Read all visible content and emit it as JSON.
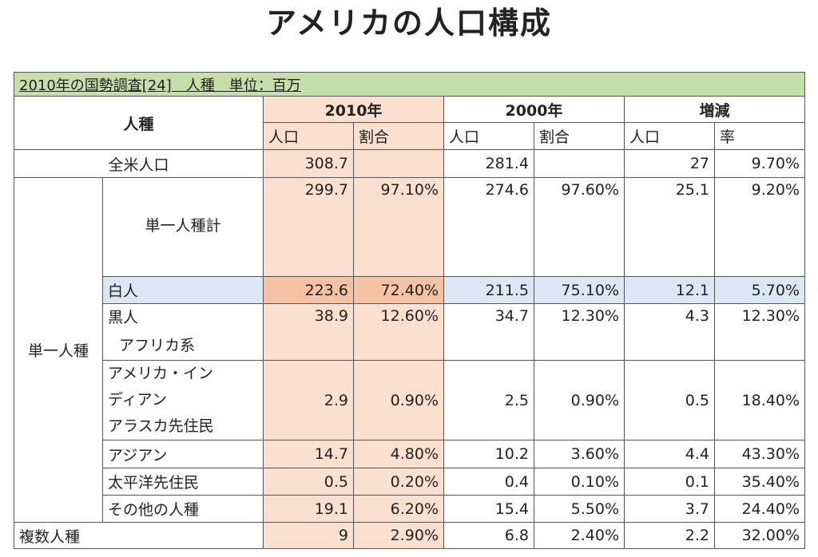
{
  "title": "アメリカの人口構成",
  "caption": "2010年の国勢調査[24]　人種　単位：百万",
  "headers": {
    "race": "人種",
    "y2010": "2010年",
    "y2000": "2000年",
    "change": "増減",
    "pop": "人口",
    "ratio": "割合",
    "rate": "率"
  },
  "total": {
    "label": "全米人口",
    "p2010": "308.7",
    "r2010": "",
    "p2000": "281.4",
    "r2000": "",
    "chg": "27",
    "rate": "9.70%"
  },
  "single_group_label": "単一人種",
  "single_total": {
    "label": "単一人種計",
    "p2010": "299.7",
    "r2010": "97.10%",
    "p2000": "274.6",
    "r2000": "97.60%",
    "chg": "25.1",
    "rate": "9.20%"
  },
  "white": {
    "label": "白人",
    "p2010": "223.6",
    "r2010": "72.40%",
    "p2000": "211.5",
    "r2000": "75.10%",
    "chg": "12.1",
    "rate": "5.70%"
  },
  "black": {
    "label1": "黒人",
    "label2": "アフリカ系",
    "p2010": "38.9",
    "r2010": "12.60%",
    "p2000": "34.7",
    "r2000": "12.30%",
    "chg": "4.3",
    "rate": "12.30%"
  },
  "native": {
    "label1": "アメリカ・イン",
    "label2": "ディアン",
    "label3": "アラスカ先住民",
    "p2010": "2.9",
    "r2010": "0.90%",
    "p2000": "2.5",
    "r2000": "0.90%",
    "chg": "0.5",
    "rate": "18.40%"
  },
  "asian": {
    "label": "アジアン",
    "p2010": "14.7",
    "r2010": "4.80%",
    "p2000": "10.2",
    "r2000": "3.60%",
    "chg": "4.4",
    "rate": "43.30%"
  },
  "pacific": {
    "label": "太平洋先住民",
    "p2010": "0.5",
    "r2010": "0.20%",
    "p2000": "0.4",
    "r2000": "0.10%",
    "chg": "0.1",
    "rate": "35.40%"
  },
  "other": {
    "label": "その他の人種",
    "p2010": "19.1",
    "r2010": "6.20%",
    "p2000": "15.4",
    "r2000": "5.50%",
    "chg": "3.7",
    "rate": "24.40%"
  },
  "multi": {
    "label": "複数人種",
    "p2010": "9",
    "r2010": "2.90%",
    "p2000": "6.8",
    "r2000": "2.40%",
    "chg": "2.2",
    "rate": "32.00%"
  }
}
